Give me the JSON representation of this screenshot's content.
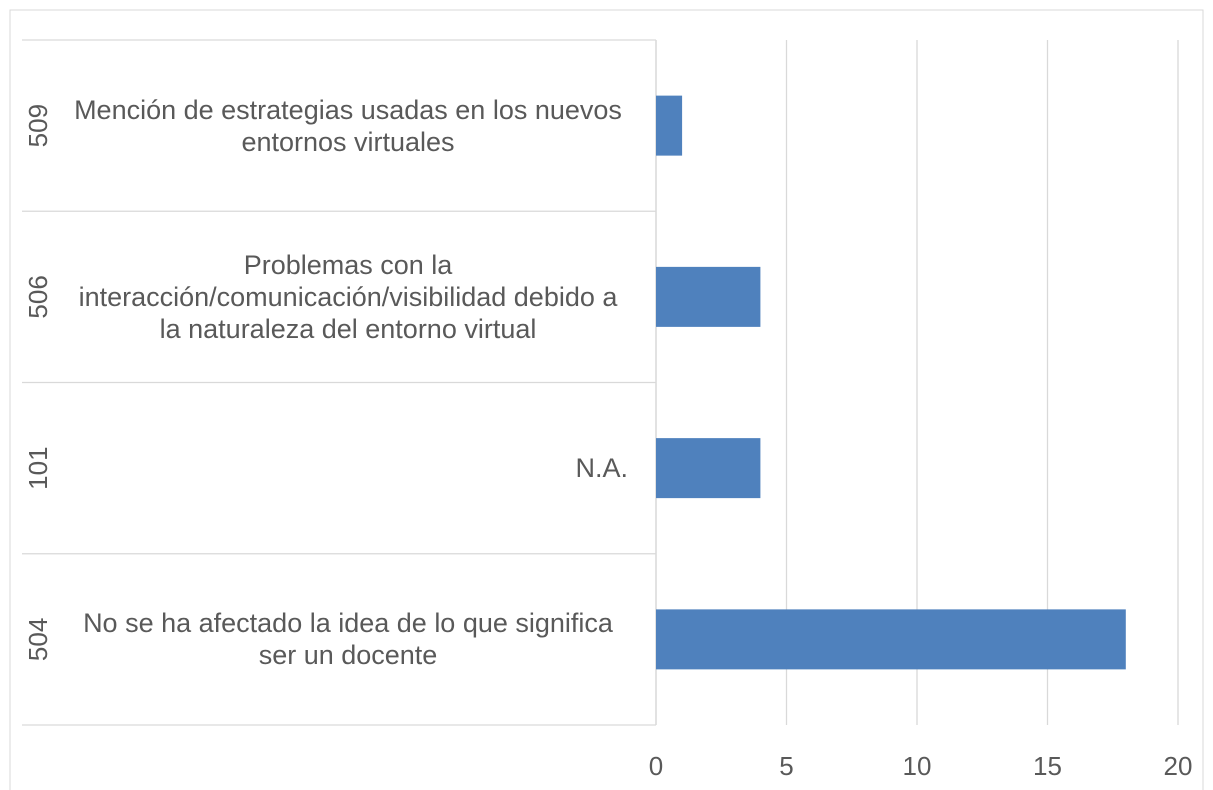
{
  "chart_data": {
    "type": "bar",
    "orientation": "horizontal",
    "codes": [
      "509",
      "506",
      "101",
      "504"
    ],
    "categories": [
      "Mención de estrategias usadas en los nuevos entornos virtuales",
      "Problemas con la interacción/comunicación/visibilidad debido a la naturaleza del entorno virtual",
      "N.A.",
      "No se ha afectado la idea de lo que significa ser un docente"
    ],
    "values": [
      1,
      4,
      4,
      18
    ],
    "color": "#4f81bd",
    "xlim": [
      0,
      20
    ],
    "xticks": [
      0,
      5,
      10,
      15,
      20
    ],
    "grid": true
  }
}
